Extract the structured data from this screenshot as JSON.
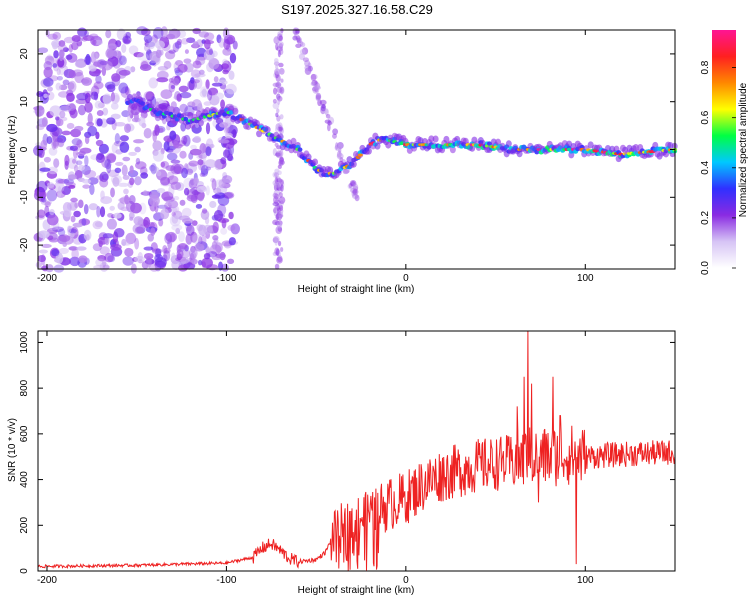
{
  "title": "S197.2025.327.16.58.C29",
  "chart_data": [
    {
      "type": "heatmap",
      "name": "spectrogram",
      "xlabel": "Height of straight line (km)",
      "ylabel": "Frequency (Hz)",
      "xlim": [
        -205,
        150
      ],
      "ylim": [
        -25,
        25
      ],
      "xticks": [
        -200,
        -100,
        0,
        100
      ],
      "yticks": [
        -20,
        -10,
        0,
        10,
        20
      ],
      "ridge": {
        "x": [
          -150,
          -140,
          -130,
          -120,
          -110,
          -100,
          -90,
          -80,
          -70,
          -60,
          -50,
          -45,
          -40,
          -35,
          -30,
          -25,
          -20,
          -15,
          -10,
          0,
          10,
          20,
          40,
          60,
          80,
          100,
          120,
          150
        ],
        "y": [
          10,
          8,
          7,
          6,
          7,
          8,
          6,
          4,
          2,
          0,
          -4,
          -5,
          -5,
          -4,
          -3,
          -1,
          1,
          2,
          2,
          1,
          1,
          1,
          1,
          0,
          0,
          0,
          -1,
          0
        ]
      },
      "colorbar": {
        "label": "Normalized spectral amplitude",
        "range": [
          0,
          0.95
        ],
        "ticks": [
          "0.0",
          "0.2",
          "0.4",
          "0.6",
          "0.8"
        ],
        "colormap": [
          "#ffffff",
          "#d6c4f5",
          "#8a2be2",
          "#3030ff",
          "#00c8ff",
          "#00ff44",
          "#ffff00",
          "#ff8800",
          "#ff2020",
          "#ff1493"
        ]
      }
    },
    {
      "type": "line",
      "name": "snr",
      "xlabel": "Height of straight line (km)",
      "ylabel": "SNR (10 * v/v)",
      "xlim": [
        -205,
        150
      ],
      "ylim": [
        0,
        1050
      ],
      "xticks": [
        -200,
        -100,
        0,
        100
      ],
      "yticks": [
        0,
        200,
        400,
        600,
        800,
        1000
      ],
      "color": "#ee2222",
      "trend": {
        "x": [
          -205,
          -150,
          -100,
          -85,
          -80,
          -75,
          -70,
          -65,
          -60,
          -50,
          -45,
          -40,
          -35,
          -30,
          -20,
          -10,
          0,
          10,
          20,
          30,
          40,
          50,
          60,
          70,
          80,
          90,
          100,
          120,
          150
        ],
        "y": [
          20,
          25,
          35,
          60,
          100,
          120,
          90,
          55,
          40,
          50,
          80,
          160,
          200,
          220,
          250,
          290,
          320,
          380,
          420,
          440,
          460,
          470,
          480,
          500,
          500,
          510,
          500,
          510,
          520
        ]
      },
      "spikes": {
        "x": [
          62,
          66,
          68,
          70,
          74,
          78,
          82,
          86,
          95
        ],
        "y": [
          720,
          850,
          1050,
          820,
          300,
          600,
          850,
          680,
          30
        ]
      }
    }
  ]
}
